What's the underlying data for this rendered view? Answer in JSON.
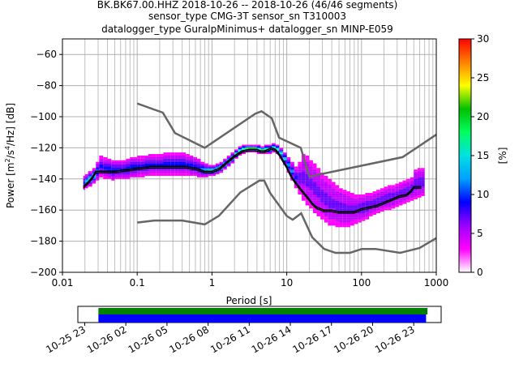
{
  "chart_data": {
    "type": "heatmap",
    "title_lines": [
      "BK.BK67.00.HHZ   2018-10-26 -- 2018-10-26  (46/46 segments)",
      "sensor_type CMG-3T sensor_sn T310003",
      "datalogger_type GuralpMinimus+ datalogger_sn MINP-E059"
    ],
    "xlabel": "Period [s]",
    "ylabel_parts": {
      "main": "Power [m",
      "exp1": "2",
      "mid": "/s",
      "exp2": "4",
      "end": "/Hz] [dB]"
    },
    "x_scale": "log",
    "xlim": [
      0.01,
      1000
    ],
    "ylim": [
      -200,
      -50
    ],
    "x_ticks": [
      {
        "value": 0.01,
        "label": "0.01"
      },
      {
        "value": 0.1,
        "label": "0.1"
      },
      {
        "value": 1,
        "label": "1"
      },
      {
        "value": 10,
        "label": "10"
      },
      {
        "value": 100,
        "label": "100"
      },
      {
        "value": 1000,
        "label": "1000"
      }
    ],
    "y_ticks": [
      {
        "value": -60,
        "label": "−60"
      },
      {
        "value": -80,
        "label": "−80"
      },
      {
        "value": -100,
        "label": "−100"
      },
      {
        "value": -120,
        "label": "−120"
      },
      {
        "value": -140,
        "label": "−140"
      },
      {
        "value": -160,
        "label": "−160"
      },
      {
        "value": -180,
        "label": "−180"
      },
      {
        "value": -200,
        "label": "−200"
      }
    ],
    "grid": true,
    "colorbar": {
      "label": "[%]",
      "range": [
        0,
        30
      ],
      "ticks": [
        {
          "value": 0,
          "label": "0"
        },
        {
          "value": 5,
          "label": "5"
        },
        {
          "value": 10,
          "label": "10"
        },
        {
          "value": 15,
          "label": "15"
        },
        {
          "value": 20,
          "label": "20"
        },
        {
          "value": 25,
          "label": "25"
        },
        {
          "value": 30,
          "label": "30"
        }
      ],
      "colors": [
        "#ffffff",
        "#ff00ff",
        "#9b00ff",
        "#0000ff",
        "#00a0ff",
        "#00e0e0",
        "#00ff60",
        "#00c000",
        "#ffff00",
        "#ff8000",
        "#ff0000"
      ]
    },
    "noise_models": {
      "nhnm": [
        [
          0.1,
          -91.5
        ],
        [
          0.22,
          -97.4
        ],
        [
          0.32,
          -110.5
        ],
        [
          0.8,
          -120
        ],
        [
          3.8,
          -98
        ],
        [
          4.6,
          -96.5
        ],
        [
          6.3,
          -101
        ],
        [
          7.9,
          -113.5
        ],
        [
          15.4,
          -120
        ],
        [
          20,
          -138.5
        ],
        [
          354.8,
          -126
        ],
        [
          1000,
          -111.5
        ]
      ],
      "nlnm": [
        [
          0.1,
          -168
        ],
        [
          0.17,
          -166.7
        ],
        [
          0.4,
          -166.7
        ],
        [
          0.8,
          -169.2
        ],
        [
          1.24,
          -163.7
        ],
        [
          2.4,
          -148.6
        ],
        [
          4.3,
          -141.1
        ],
        [
          5,
          -141.1
        ],
        [
          6,
          -149
        ],
        [
          10,
          -163.8
        ],
        [
          12,
          -166.2
        ],
        [
          15.6,
          -162.1
        ],
        [
          21.9,
          -177.5
        ],
        [
          31.6,
          -185
        ],
        [
          45,
          -187.5
        ],
        [
          70,
          -187.5
        ],
        [
          101,
          -185
        ],
        [
          154,
          -185
        ],
        [
          328,
          -187.5
        ],
        [
          600,
          -184.4
        ],
        [
          1000,
          -178
        ]
      ]
    },
    "pdf_rows": [
      {
        "x": 0.019,
        "ymin": -147,
        "ymax": -139,
        "pct": 8
      },
      {
        "x": 0.02,
        "ymin": -146,
        "ymax": -138,
        "pct": 12
      },
      {
        "x": 0.022,
        "ymin": -145,
        "ymax": -136,
        "pct": 14
      },
      {
        "x": 0.025,
        "ymin": -143,
        "ymax": -134,
        "pct": 14
      },
      {
        "x": 0.028,
        "ymin": -141,
        "ymax": -130,
        "pct": 10
      },
      {
        "x": 0.031,
        "ymin": -139,
        "ymax": -126,
        "pct": 8
      },
      {
        "x": 0.035,
        "ymin": -140,
        "ymax": -127,
        "pct": 8
      },
      {
        "x": 0.04,
        "ymin": -140,
        "ymax": -128,
        "pct": 8
      },
      {
        "x": 0.045,
        "ymin": -141,
        "ymax": -129,
        "pct": 8
      },
      {
        "x": 0.05,
        "ymin": -140,
        "ymax": -129,
        "pct": 8
      },
      {
        "x": 0.056,
        "ymin": -140,
        "ymax": -129,
        "pct": 8
      },
      {
        "x": 0.063,
        "ymin": -140,
        "ymax": -129,
        "pct": 8
      },
      {
        "x": 0.071,
        "ymin": -140,
        "ymax": -128,
        "pct": 8
      },
      {
        "x": 0.08,
        "ymin": -139,
        "ymax": -127,
        "pct": 8
      },
      {
        "x": 0.09,
        "ymin": -139,
        "ymax": -127,
        "pct": 8
      },
      {
        "x": 0.1,
        "ymin": -139,
        "ymax": -126,
        "pct": 8
      },
      {
        "x": 0.112,
        "ymin": -139,
        "ymax": -126,
        "pct": 8
      },
      {
        "x": 0.126,
        "ymin": -138,
        "ymax": -126,
        "pct": 8
      },
      {
        "x": 0.141,
        "ymin": -138,
        "ymax": -125,
        "pct": 8
      },
      {
        "x": 0.158,
        "ymin": -138,
        "ymax": -125,
        "pct": 8
      },
      {
        "x": 0.178,
        "ymin": -138,
        "ymax": -125,
        "pct": 8
      },
      {
        "x": 0.2,
        "ymin": -138,
        "ymax": -125,
        "pct": 8
      },
      {
        "x": 0.224,
        "ymin": -138,
        "ymax": -124,
        "pct": 8
      },
      {
        "x": 0.251,
        "ymin": -138,
        "ymax": -124,
        "pct": 8
      },
      {
        "x": 0.282,
        "ymin": -138,
        "ymax": -124,
        "pct": 8
      },
      {
        "x": 0.316,
        "ymin": -138,
        "ymax": -124,
        "pct": 8
      },
      {
        "x": 0.355,
        "ymin": -138,
        "ymax": -124,
        "pct": 8
      },
      {
        "x": 0.398,
        "ymin": -138,
        "ymax": -124,
        "pct": 8
      },
      {
        "x": 0.447,
        "ymin": -138,
        "ymax": -125,
        "pct": 8
      },
      {
        "x": 0.5,
        "ymin": -138,
        "ymax": -126,
        "pct": 8
      },
      {
        "x": 0.562,
        "ymin": -138,
        "ymax": -127,
        "pct": 8
      },
      {
        "x": 0.631,
        "ymin": -139,
        "ymax": -128,
        "pct": 8
      },
      {
        "x": 0.708,
        "ymin": -139,
        "ymax": -130,
        "pct": 10
      },
      {
        "x": 0.794,
        "ymin": -139,
        "ymax": -131,
        "pct": 12
      },
      {
        "x": 0.891,
        "ymin": -138,
        "ymax": -132,
        "pct": 14
      },
      {
        "x": 1.0,
        "ymin": -138,
        "ymax": -132,
        "pct": 14
      },
      {
        "x": 1.12,
        "ymin": -137,
        "ymax": -131,
        "pct": 14
      },
      {
        "x": 1.26,
        "ymin": -136,
        "ymax": -130,
        "pct": 14
      },
      {
        "x": 1.41,
        "ymin": -134,
        "ymax": -128,
        "pct": 14
      },
      {
        "x": 1.58,
        "ymin": -132,
        "ymax": -126,
        "pct": 16
      },
      {
        "x": 1.78,
        "ymin": -130,
        "ymax": -124,
        "pct": 16
      },
      {
        "x": 2.0,
        "ymin": -127,
        "ymax": -122,
        "pct": 18
      },
      {
        "x": 2.24,
        "ymin": -125,
        "ymax": -120,
        "pct": 20
      },
      {
        "x": 2.51,
        "ymin": -124,
        "ymax": -119,
        "pct": 20
      },
      {
        "x": 2.82,
        "ymin": -123,
        "ymax": -119,
        "pct": 20
      },
      {
        "x": 3.16,
        "ymin": -123,
        "ymax": -119,
        "pct": 20
      },
      {
        "x": 3.55,
        "ymin": -123,
        "ymax": -119,
        "pct": 20
      },
      {
        "x": 3.98,
        "ymin": -124,
        "ymax": -119,
        "pct": 20
      },
      {
        "x": 4.47,
        "ymin": -124,
        "ymax": -120,
        "pct": 20
      },
      {
        "x": 5.01,
        "ymin": -124,
        "ymax": -119,
        "pct": 20
      },
      {
        "x": 5.62,
        "ymin": -124,
        "ymax": -119,
        "pct": 20
      },
      {
        "x": 6.31,
        "ymin": -123,
        "ymax": -118,
        "pct": 20
      },
      {
        "x": 7.08,
        "ymin": -124,
        "ymax": -119,
        "pct": 18
      },
      {
        "x": 7.94,
        "ymin": -127,
        "ymax": -121,
        "pct": 16
      },
      {
        "x": 8.91,
        "ymin": -131,
        "ymax": -124,
        "pct": 14
      },
      {
        "x": 10.0,
        "ymin": -136,
        "ymax": -127,
        "pct": 12
      },
      {
        "x": 11.2,
        "ymin": -141,
        "ymax": -130,
        "pct": 10
      },
      {
        "x": 12.6,
        "ymin": -146,
        "ymax": -133,
        "pct": 8
      },
      {
        "x": 14.1,
        "ymin": -150,
        "ymax": -130,
        "pct": 6
      },
      {
        "x": 15.8,
        "ymin": -154,
        "ymax": -125,
        "pct": 5
      },
      {
        "x": 17.8,
        "ymin": -157,
        "ymax": -126,
        "pct": 5
      },
      {
        "x": 20.0,
        "ymin": -159,
        "ymax": -129,
        "pct": 5
      },
      {
        "x": 22.4,
        "ymin": -162,
        "ymax": -131,
        "pct": 5
      },
      {
        "x": 25.1,
        "ymin": -164,
        "ymax": -134,
        "pct": 5
      },
      {
        "x": 28.2,
        "ymin": -166,
        "ymax": -137,
        "pct": 5
      },
      {
        "x": 31.6,
        "ymin": -168,
        "ymax": -139,
        "pct": 5
      },
      {
        "x": 35.5,
        "ymin": -170,
        "ymax": -141,
        "pct": 5
      },
      {
        "x": 39.8,
        "ymin": -170,
        "ymax": -143,
        "pct": 5
      },
      {
        "x": 44.7,
        "ymin": -171,
        "ymax": -145,
        "pct": 5
      },
      {
        "x": 50.1,
        "ymin": -171,
        "ymax": -147,
        "pct": 5
      },
      {
        "x": 56.2,
        "ymin": -171,
        "ymax": -148,
        "pct": 5
      },
      {
        "x": 63.1,
        "ymin": -171,
        "ymax": -149,
        "pct": 5
      },
      {
        "x": 70.8,
        "ymin": -170,
        "ymax": -150,
        "pct": 5
      },
      {
        "x": 79.4,
        "ymin": -169,
        "ymax": -151,
        "pct": 5
      },
      {
        "x": 89.1,
        "ymin": -168,
        "ymax": -151,
        "pct": 6
      },
      {
        "x": 100,
        "ymin": -167,
        "ymax": -151,
        "pct": 6
      },
      {
        "x": 112,
        "ymin": -166,
        "ymax": -150,
        "pct": 6
      },
      {
        "x": 126,
        "ymin": -164,
        "ymax": -150,
        "pct": 6
      },
      {
        "x": 141,
        "ymin": -163,
        "ymax": -149,
        "pct": 6
      },
      {
        "x": 158,
        "ymin": -162,
        "ymax": -148,
        "pct": 6
      },
      {
        "x": 178,
        "ymin": -161,
        "ymax": -147,
        "pct": 6
      },
      {
        "x": 200,
        "ymin": -160,
        "ymax": -146,
        "pct": 6
      },
      {
        "x": 224,
        "ymin": -160,
        "ymax": -145,
        "pct": 6
      },
      {
        "x": 251,
        "ymin": -159,
        "ymax": -145,
        "pct": 6
      },
      {
        "x": 282,
        "ymin": -158,
        "ymax": -144,
        "pct": 6
      },
      {
        "x": 316,
        "ymin": -157,
        "ymax": -143,
        "pct": 6
      },
      {
        "x": 355,
        "ymin": -156,
        "ymax": -142,
        "pct": 6
      },
      {
        "x": 398,
        "ymin": -155,
        "ymax": -141,
        "pct": 6
      },
      {
        "x": 447,
        "ymin": -154,
        "ymax": -140,
        "pct": 6
      },
      {
        "x": 501,
        "ymin": -153,
        "ymax": -135,
        "pct": 6
      },
      {
        "x": 562,
        "ymin": -152,
        "ymax": -134,
        "pct": 6
      },
      {
        "x": 631,
        "ymin": -151,
        "ymax": -134,
        "pct": 6
      }
    ],
    "mean_curve": [
      [
        0.019,
        -145
      ],
      [
        0.022,
        -142
      ],
      [
        0.025,
        -139
      ],
      [
        0.028,
        -135
      ],
      [
        0.035,
        -135
      ],
      [
        0.05,
        -135
      ],
      [
        0.07,
        -134
      ],
      [
        0.1,
        -133
      ],
      [
        0.15,
        -132
      ],
      [
        0.2,
        -132
      ],
      [
        0.3,
        -132
      ],
      [
        0.45,
        -132
      ],
      [
        0.6,
        -133
      ],
      [
        0.8,
        -135
      ],
      [
        1.0,
        -135
      ],
      [
        1.26,
        -133
      ],
      [
        1.58,
        -129
      ],
      [
        2.0,
        -125
      ],
      [
        2.5,
        -122
      ],
      [
        3.16,
        -121
      ],
      [
        4.0,
        -121
      ],
      [
        4.47,
        -122
      ],
      [
        5.0,
        -122
      ],
      [
        5.62,
        -121
      ],
      [
        6.31,
        -120
      ],
      [
        7.08,
        -121
      ],
      [
        7.94,
        -124
      ],
      [
        8.91,
        -128
      ],
      [
        10,
        -132
      ],
      [
        11.2,
        -137
      ],
      [
        12.6,
        -141
      ],
      [
        14.1,
        -144
      ],
      [
        15.8,
        -147
      ],
      [
        17.8,
        -150
      ],
      [
        20,
        -153
      ],
      [
        22.4,
        -156
      ],
      [
        25.1,
        -158
      ],
      [
        28.2,
        -159
      ],
      [
        31.6,
        -160
      ],
      [
        39.8,
        -160
      ],
      [
        50.1,
        -161
      ],
      [
        63.1,
        -161
      ],
      [
        79.4,
        -161
      ],
      [
        89.1,
        -160
      ],
      [
        100,
        -159
      ],
      [
        126,
        -158
      ],
      [
        158,
        -157
      ],
      [
        200,
        -155
      ],
      [
        251,
        -153
      ],
      [
        316,
        -151
      ],
      [
        398,
        -150
      ],
      [
        447,
        -148
      ],
      [
        501,
        -145
      ],
      [
        631,
        -145
      ]
    ],
    "mode_curve": [
      [
        0.019,
        -146
      ],
      [
        0.022,
        -143
      ],
      [
        0.025,
        -140
      ],
      [
        0.028,
        -136
      ],
      [
        0.035,
        -136
      ],
      [
        0.05,
        -136
      ],
      [
        0.07,
        -135
      ],
      [
        0.1,
        -134
      ],
      [
        0.15,
        -133
      ],
      [
        0.2,
        -133
      ],
      [
        0.3,
        -133
      ],
      [
        0.45,
        -133
      ],
      [
        0.6,
        -134
      ],
      [
        0.8,
        -136
      ],
      [
        1.0,
        -136
      ],
      [
        1.26,
        -134
      ],
      [
        1.58,
        -130
      ],
      [
        2.0,
        -126
      ],
      [
        2.5,
        -123
      ],
      [
        3.16,
        -122
      ],
      [
        4.0,
        -122
      ],
      [
        4.47,
        -123
      ],
      [
        5.0,
        -123
      ],
      [
        5.62,
        -122
      ],
      [
        6.31,
        -121
      ],
      [
        7.08,
        -122
      ],
      [
        7.94,
        -125
      ],
      [
        8.91,
        -129
      ],
      [
        10,
        -133
      ],
      [
        11.2,
        -138
      ],
      [
        12.6,
        -142
      ],
      [
        14.1,
        -145
      ],
      [
        15.8,
        -148
      ],
      [
        17.8,
        -151
      ],
      [
        20,
        -154
      ],
      [
        22.4,
        -157
      ],
      [
        25.1,
        -159
      ],
      [
        28.2,
        -160
      ],
      [
        31.6,
        -161
      ],
      [
        39.8,
        -161
      ],
      [
        50.1,
        -162
      ],
      [
        63.1,
        -162
      ],
      [
        79.4,
        -162
      ],
      [
        89.1,
        -161
      ],
      [
        100,
        -160
      ],
      [
        126,
        -159
      ],
      [
        158,
        -158
      ],
      [
        200,
        -156
      ],
      [
        251,
        -154
      ],
      [
        316,
        -152
      ],
      [
        398,
        -151
      ],
      [
        447,
        -149
      ],
      [
        501,
        -146
      ],
      [
        631,
        -146
      ]
    ],
    "timeline": {
      "tick_labels": [
        "10-25 23",
        "10-26 02",
        "10-26 05",
        "10-26 08",
        "10-26 11",
        "10-26 14",
        "10-26 17",
        "10-26 20",
        "10-26 23"
      ],
      "tick_hours": [
        -1,
        2,
        5,
        8,
        11,
        14,
        17,
        20,
        23
      ],
      "range_hours": [
        -1.5,
        25
      ],
      "green_bar_hours": [
        0,
        24
      ],
      "blue_bar_hours": [
        0,
        23.9
      ],
      "green_color": "#008000",
      "blue_color": "#0000ff"
    }
  }
}
